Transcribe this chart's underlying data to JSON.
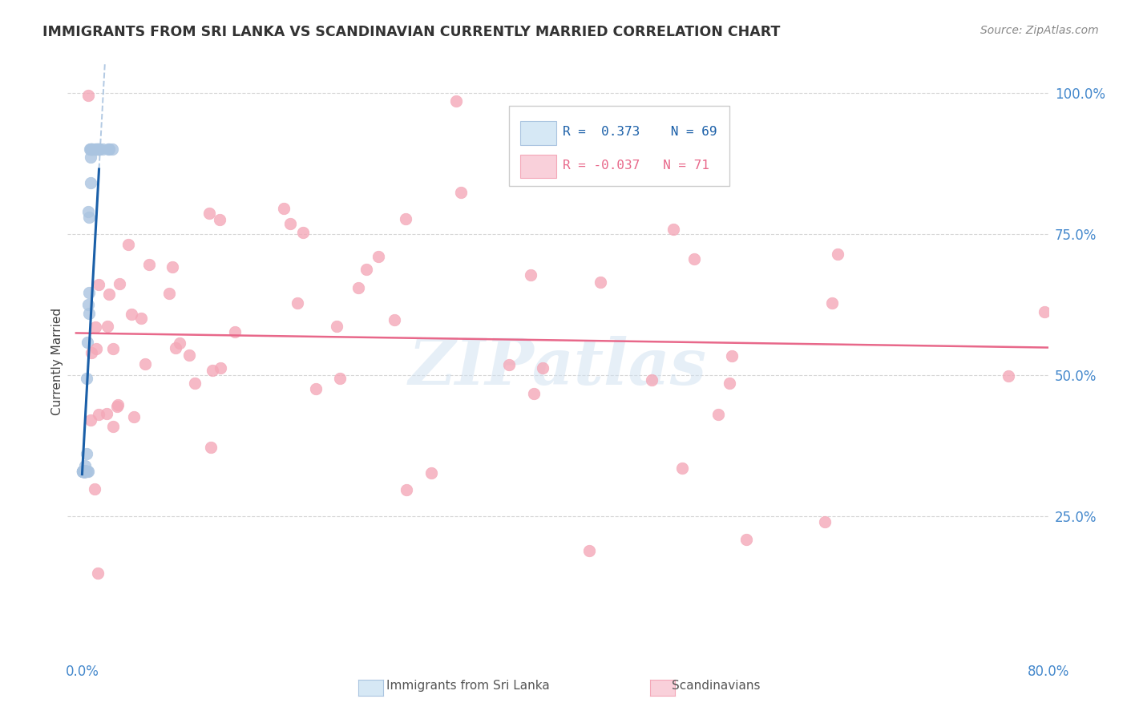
{
  "title": "IMMIGRANTS FROM SRI LANKA VS SCANDINAVIAN CURRENTLY MARRIED CORRELATION CHART",
  "source": "Source: ZipAtlas.com",
  "ylabel": "Currently Married",
  "legend_blue_r": "0.373",
  "legend_blue_n": "69",
  "legend_pink_r": "-0.037",
  "legend_pink_n": "71",
  "blue_color": "#aac4e0",
  "blue_line_color": "#1a5fa8",
  "blue_line_dashed_color": "#aac4e0",
  "pink_color": "#f4a8b8",
  "pink_line_color": "#e8688a",
  "watermark": "ZIPatlas",
  "background_color": "#ffffff",
  "grid_color": "#cccccc",
  "xmax": 0.8,
  "ymin": 0.0,
  "ymax": 1.05,
  "right_yticks": [
    1.0,
    0.75,
    0.5,
    0.25
  ],
  "right_yticklabels": [
    "100.0%",
    "75.0%",
    "50.0%",
    "25.0%"
  ],
  "xtick_positions": [
    0.0,
    0.16,
    0.32,
    0.48,
    0.64,
    0.8
  ],
  "xtick_labels": [
    "0.0%",
    "",
    "",
    "",
    "",
    "80.0%"
  ],
  "tick_color": "#4488cc",
  "title_color": "#333333",
  "source_color": "#888888",
  "ylabel_color": "#444444",
  "legend_blue_text_color": "#1a5fa8",
  "legend_pink_text_color": "#e8688a",
  "legend_box_edge_color": "#cccccc",
  "legend_blue_box_face": "#d6e8f5",
  "legend_blue_box_edge": "#aac4e0",
  "legend_pink_box_face": "#f9d0da",
  "legend_pink_box_edge": "#f4a8b8",
  "bottom_legend_color": "#555555"
}
